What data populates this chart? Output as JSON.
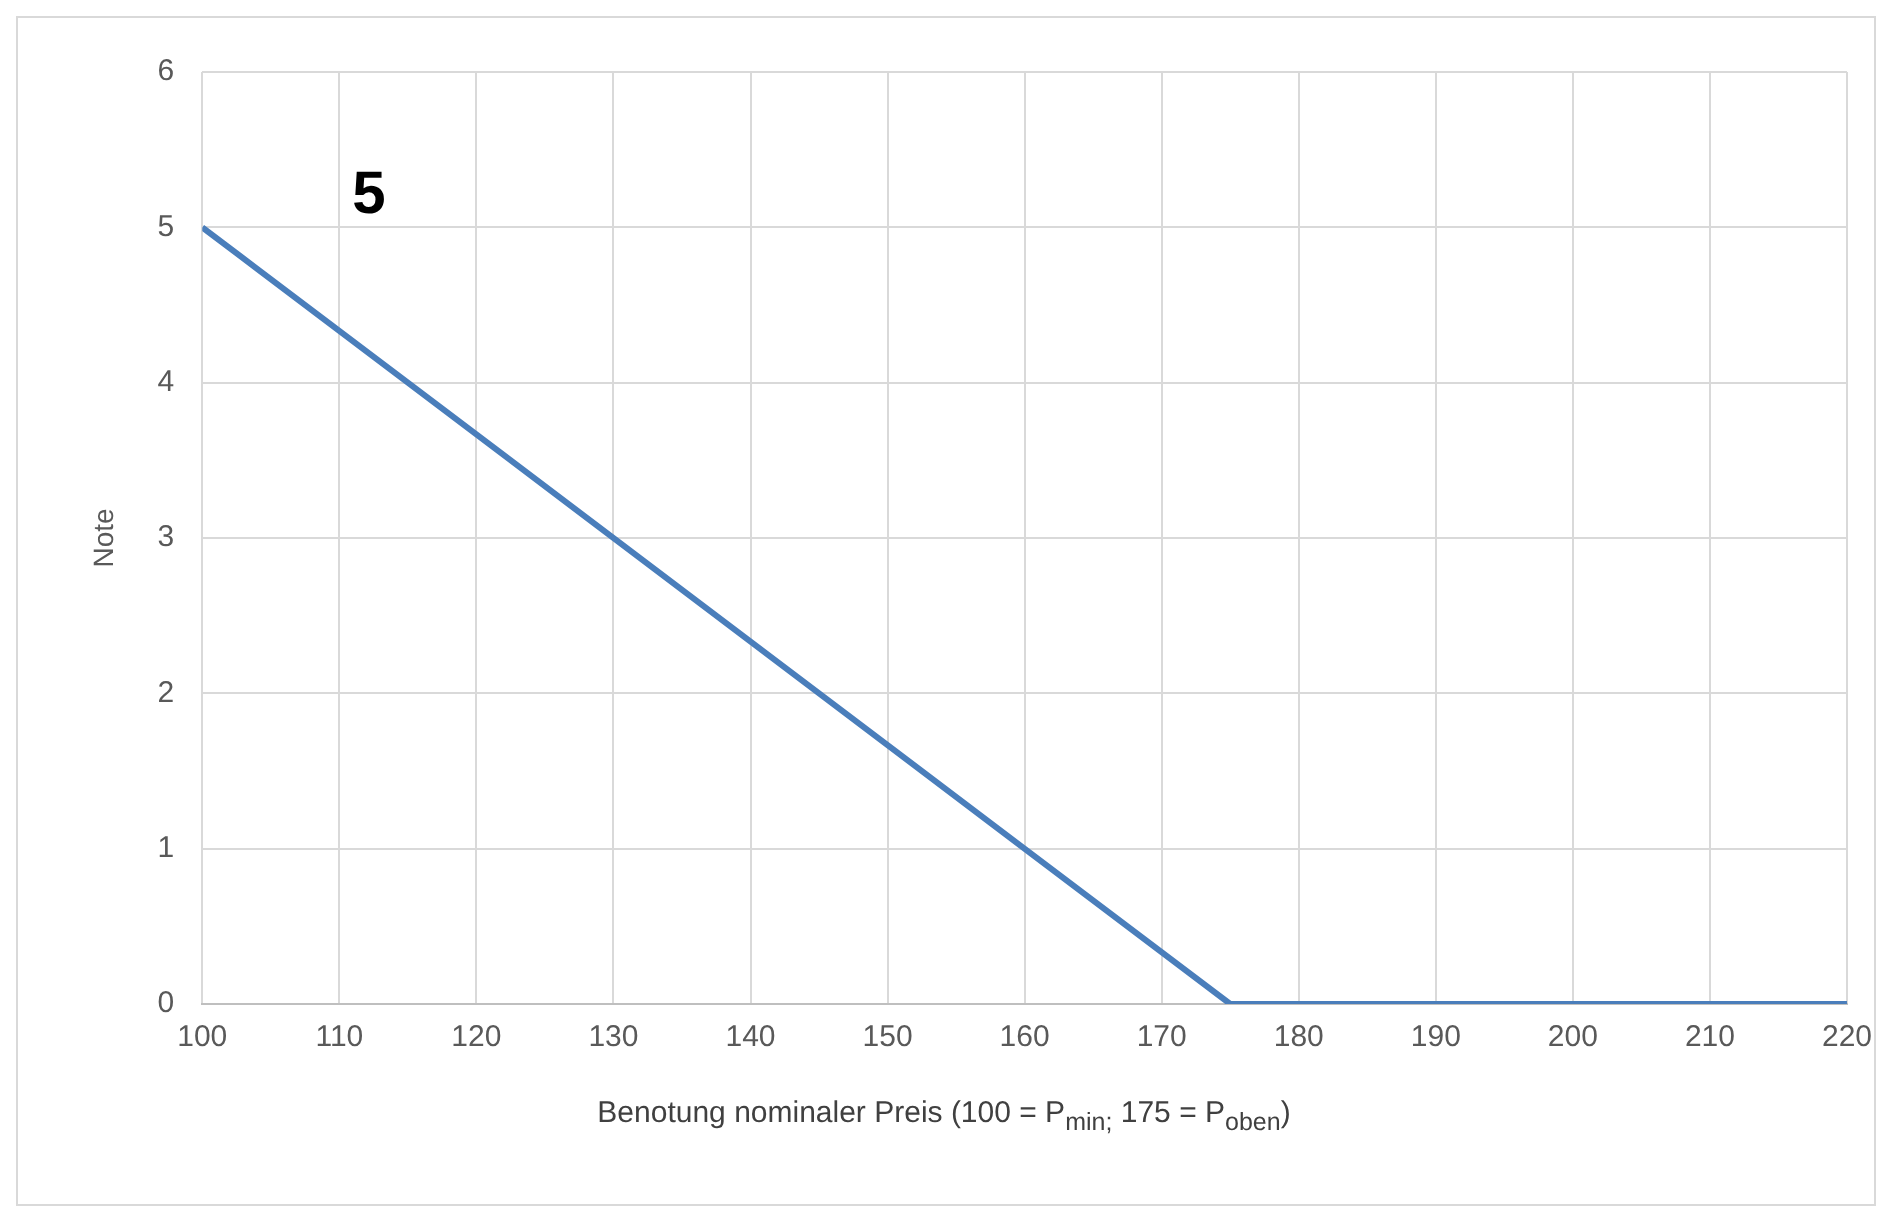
{
  "chart_data": {
    "type": "line",
    "xlabel": "Benotung nominaler Preis (100 = P$_{min;}$ 175 = P$_{oben}$)",
    "ylabel": "Note",
    "x": [
      100,
      175,
      220
    ],
    "series": [
      {
        "color": "#4a7ebb",
        "values": [
          5,
          0,
          0
        ]
      }
    ],
    "xlim": [
      100,
      220
    ],
    "xticks": [
      100,
      110,
      120,
      130,
      140,
      150,
      160,
      170,
      180,
      190,
      200,
      210,
      220
    ],
    "ylim": [
      0,
      6
    ],
    "yticks": [
      0,
      1,
      2,
      3,
      4,
      5,
      6
    ],
    "grid": true,
    "annotations": [
      "5"
    ]
  }
}
